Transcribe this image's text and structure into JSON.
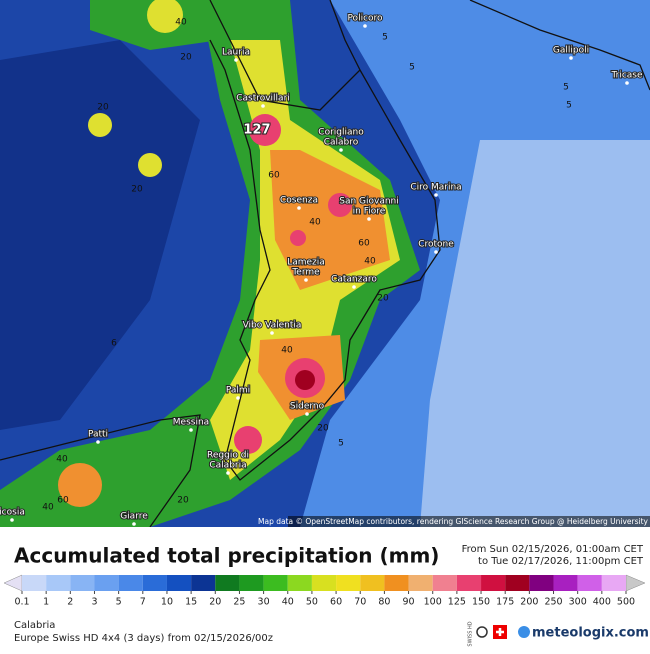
{
  "map": {
    "cities": [
      {
        "lines": [
          "Policoro"
        ]
      },
      {
        "lines": [
          "Lauria"
        ]
      },
      {
        "lines": [
          "Castrovillari"
        ]
      },
      {
        "lines": [
          "Gallipoli"
        ]
      },
      {
        "lines": [
          "Tricase"
        ]
      },
      {
        "lines": [
          "Corigliano",
          "Calabro"
        ]
      },
      {
        "lines": [
          "Ciro Marina"
        ]
      },
      {
        "lines": [
          "Cosenza"
        ]
      },
      {
        "lines": [
          "San Giovanni",
          "in Fiore"
        ]
      },
      {
        "lines": [
          "Crotone"
        ]
      },
      {
        "lines": [
          "Lamezia",
          "Terme"
        ]
      },
      {
        "lines": [
          "Catanzaro"
        ]
      },
      {
        "lines": [
          "Vibo Valentia"
        ]
      },
      {
        "lines": [
          "Palmi"
        ]
      },
      {
        "lines": [
          "Siderno"
        ]
      },
      {
        "lines": [
          "Messina"
        ]
      },
      {
        "lines": [
          "Patti"
        ]
      },
      {
        "lines": [
          "Reggio di",
          "Calabria"
        ]
      },
      {
        "lines": [
          "Giarre"
        ]
      },
      {
        "lines": [
          "icosia"
        ]
      }
    ],
    "max_label": "127",
    "contour_labels": [
      "40",
      "20",
      "5",
      "5",
      "5",
      "5",
      "20",
      "20",
      "60",
      "40",
      "60",
      "40",
      "20",
      "40",
      "20",
      "5",
      "40",
      "60",
      "40",
      "20",
      "6"
    ],
    "attribution": "Map data © OpenStreetMap contributors, rendering GIScience Research Group @ Heidelberg University"
  },
  "header": {
    "title": "Accumulated total precipitation (mm)",
    "from": "From Sun 02/15/2026, 01:00am CET",
    "to": "to Tue 02/17/2026, 11:00pm CET"
  },
  "legend": {
    "ticks": [
      0.1,
      1,
      2,
      3,
      5,
      7,
      10,
      15,
      20,
      25,
      30,
      40,
      50,
      60,
      70,
      80,
      90,
      100,
      125,
      150,
      175,
      200,
      250,
      300,
      400,
      500
    ],
    "colors": [
      "#e4e0f4",
      "#c8d8f8",
      "#a8c8f8",
      "#88b4f4",
      "#6aa0f0",
      "#4a88e8",
      "#2a6cd8",
      "#1450c0",
      "#0c3494",
      "#107a20",
      "#1e9a20",
      "#3cbc20",
      "#8cd820",
      "#d8e020",
      "#f0e020",
      "#f0c020",
      "#f09020",
      "#f0b070",
      "#f08090",
      "#e84070",
      "#d01040",
      "#a00020",
      "#800080",
      "#a820c0",
      "#d060e8",
      "#e8a8f4",
      "#c8c8c8"
    ]
  },
  "footer": {
    "region": "Calabria",
    "model": "Europe Swiss HD 4x4 (3 days) from 02/15/2026/00z",
    "badge": "SWISS HD",
    "logo": "meteologix.com"
  }
}
